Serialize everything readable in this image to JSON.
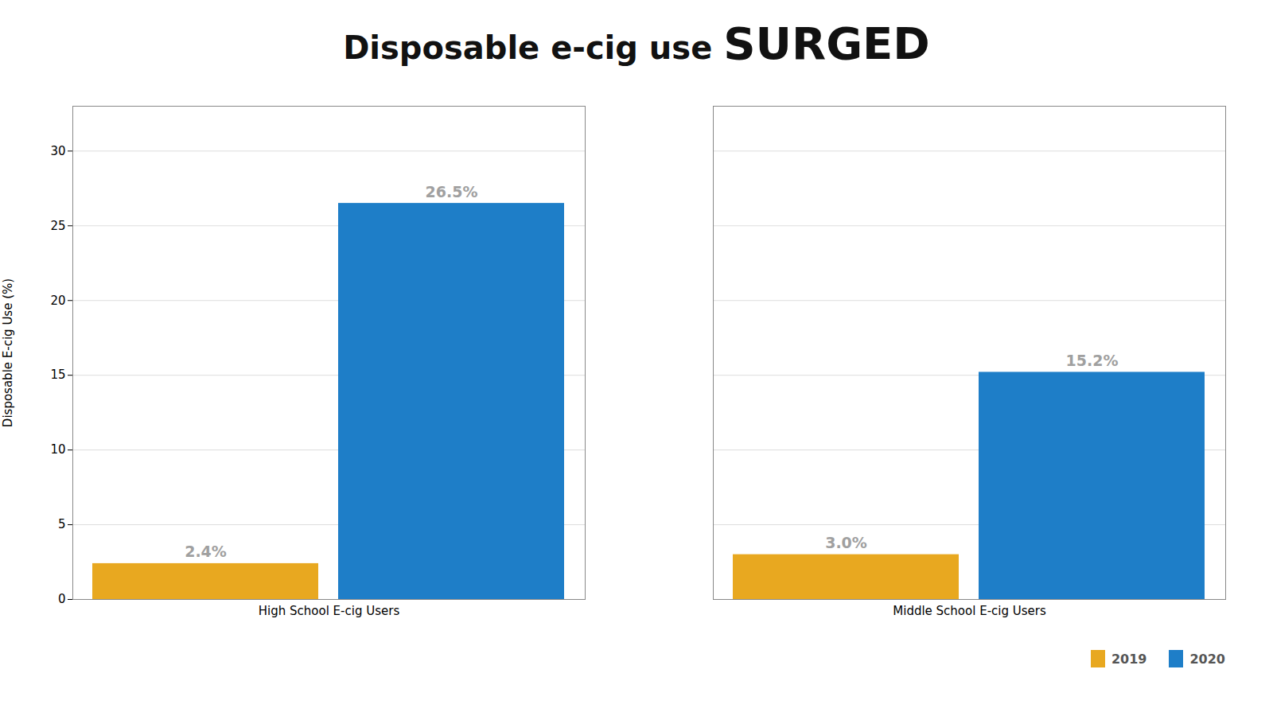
{
  "chart_data": {
    "type": "bar",
    "title": "Disposable e-cig use SURGED",
    "ylabel": "Disposable E-cig Use (%)",
    "categories": [
      "High School E-cig Users",
      "Middle School E-cig Users"
    ],
    "series": [
      {
        "name": "2019",
        "color": "#E8A820",
        "values": [
          2.4,
          3.0
        ],
        "value_labels": [
          "2.4%",
          "3.0%"
        ]
      },
      {
        "name": "2020",
        "color": "#1E7EC8",
        "values": [
          26.5,
          15.2
        ],
        "value_labels": [
          "26.5%",
          "15.2%"
        ]
      }
    ],
    "ylim": [
      0,
      33
    ],
    "yticks": [
      0,
      5,
      10,
      15,
      20,
      25,
      30
    ],
    "grid": true,
    "legend": "lower right",
    "data_labels": true
  }
}
